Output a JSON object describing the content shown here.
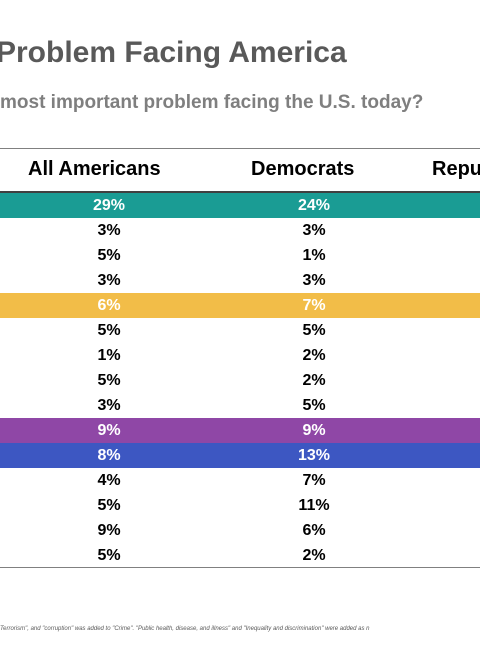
{
  "title": "Problem Facing America",
  "subtitle": "most important problem facing the U.S. today?",
  "footnote": "Terrorism\", and \"corruption\" was added to \"Crime\". \"Public health, disease, and illness\" and \"Inequality and discrimination\" were added as n",
  "chart_data": {
    "type": "table",
    "title": "Problem Facing America",
    "subtitle": "most important problem facing the U.S. today?",
    "columns": [
      "All Americans",
      "Democrats",
      "Repu"
    ],
    "rows": [
      {
        "all": "29%",
        "dem": "24%",
        "highlight": "#1a9c94"
      },
      {
        "all": "3%",
        "dem": "3%",
        "highlight": null
      },
      {
        "all": "5%",
        "dem": "1%",
        "highlight": null
      },
      {
        "all": "3%",
        "dem": "3%",
        "highlight": null
      },
      {
        "all": "6%",
        "dem": "7%",
        "highlight": "#f2bd48"
      },
      {
        "all": "5%",
        "dem": "5%",
        "highlight": null
      },
      {
        "all": "1%",
        "dem": "2%",
        "highlight": null
      },
      {
        "all": "5%",
        "dem": "2%",
        "highlight": null
      },
      {
        "all": "3%",
        "dem": "5%",
        "highlight": null
      },
      {
        "all": "9%",
        "dem": "9%",
        "highlight": "#8f47a6"
      },
      {
        "all": "8%",
        "dem": "13%",
        "highlight": "#3d57c2"
      },
      {
        "all": "4%",
        "dem": "7%",
        "highlight": null
      },
      {
        "all": "5%",
        "dem": "11%",
        "highlight": null
      },
      {
        "all": "9%",
        "dem": "6%",
        "highlight": null
      },
      {
        "all": "5%",
        "dem": "2%",
        "highlight": null
      }
    ]
  }
}
